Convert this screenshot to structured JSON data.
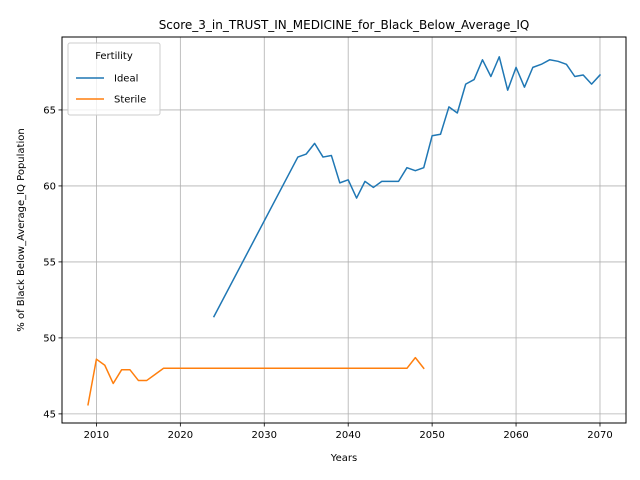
{
  "chart_data": {
    "type": "line",
    "title": "Score_3_in_TRUST_IN_MEDICINE_for_Black_Below_Average_IQ",
    "xlabel": "Years",
    "ylabel": "% of Black Below_Average_IQ Population",
    "xlim": [
      2005.9,
      2073.1
    ],
    "ylim": [
      44.4,
      69.8
    ],
    "xticks": [
      2010,
      2020,
      2030,
      2040,
      2050,
      2060,
      2070
    ],
    "yticks": [
      45,
      50,
      55,
      60,
      65
    ],
    "grid": true,
    "legend": {
      "title": "Fertility",
      "placement": "top-left"
    },
    "series": [
      {
        "name": "Ideal",
        "color": "#1f77b4",
        "x": [
          2024,
          2034,
          2035,
          2036,
          2037,
          2038,
          2039,
          2040,
          2041,
          2042,
          2043,
          2044,
          2045,
          2046,
          2047,
          2048,
          2049,
          2050,
          2051,
          2052,
          2053,
          2054,
          2055,
          2056,
          2057,
          2058,
          2059,
          2060,
          2061,
          2062,
          2063,
          2064,
          2065,
          2066,
          2067,
          2068,
          2069,
          2070
        ],
        "y": [
          51.4,
          61.9,
          62.1,
          62.8,
          61.9,
          62.0,
          60.2,
          60.4,
          59.2,
          60.3,
          59.9,
          60.3,
          60.3,
          60.3,
          61.2,
          61.0,
          61.2,
          63.3,
          63.4,
          65.2,
          64.8,
          66.7,
          67.0,
          68.3,
          67.2,
          68.5,
          66.3,
          67.8,
          66.5,
          67.8,
          68.0,
          68.3,
          68.2,
          68.0,
          67.2,
          67.3,
          66.7,
          67.3
        ]
      },
      {
        "name": "Sterile",
        "color": "#ff7f0e",
        "x": [
          2009,
          2010,
          2011,
          2012,
          2013,
          2014,
          2015,
          2016,
          2017,
          2018,
          2019,
          2020,
          2021,
          2022,
          2023,
          2024,
          2025,
          2026,
          2027,
          2028,
          2029,
          2030,
          2031,
          2032,
          2033,
          2034,
          2035,
          2036,
          2037,
          2038,
          2039,
          2040,
          2041,
          2042,
          2043,
          2044,
          2045,
          2046,
          2047,
          2048,
          2049
        ],
        "y": [
          45.6,
          48.6,
          48.2,
          47.0,
          47.9,
          47.9,
          47.2,
          47.2,
          47.6,
          48.0,
          48.0,
          48.0,
          48.0,
          48.0,
          48.0,
          48.0,
          48.0,
          48.0,
          48.0,
          48.0,
          48.0,
          48.0,
          48.0,
          48.0,
          48.0,
          48.0,
          48.0,
          48.0,
          48.0,
          48.0,
          48.0,
          48.0,
          48.0,
          48.0,
          48.0,
          48.0,
          48.0,
          48.0,
          48.0,
          48.7,
          48.0
        ]
      }
    ]
  }
}
